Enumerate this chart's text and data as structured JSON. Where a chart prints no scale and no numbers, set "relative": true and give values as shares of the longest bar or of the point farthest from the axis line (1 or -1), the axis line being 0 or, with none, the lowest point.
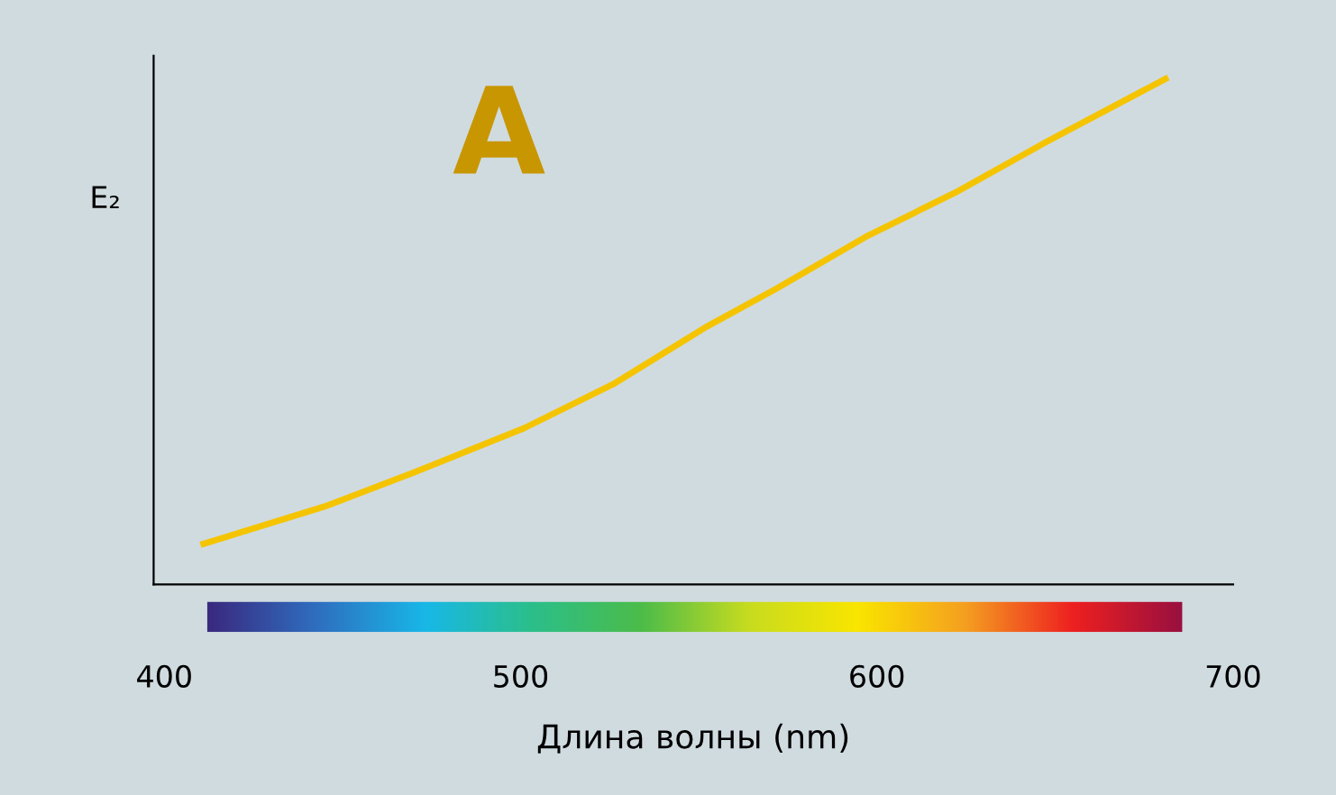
{
  "chart_data": {
    "type": "line",
    "xlabel": "Длина волны (nm)",
    "ylabel": "E₂",
    "annotations": [
      "A"
    ],
    "relative": true,
    "xlim": [
      397,
      700
    ],
    "xticks": [
      400,
      500,
      600,
      700
    ],
    "grid": false,
    "legend": false,
    "marker": "none",
    "line_style": "solid",
    "series": [
      {
        "color": "#f5c400",
        "x": [
          411,
          445,
          470,
          501,
          526,
          552,
          572,
          597,
          622,
          648,
          681
        ],
        "values": [
          0.08,
          0.154,
          0.221,
          0.309,
          0.396,
          0.509,
          0.586,
          0.688,
          0.775,
          0.877,
          1.0
        ]
      }
    ]
  }
}
